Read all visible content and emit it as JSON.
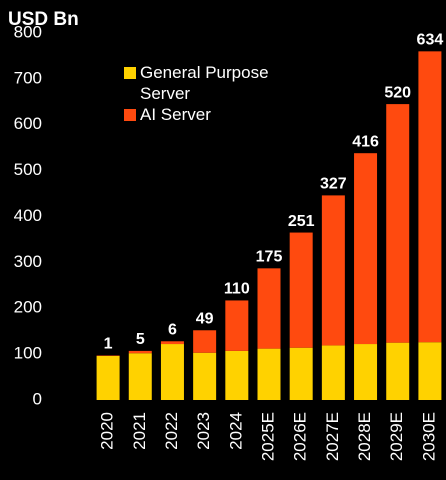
{
  "chart_data": {
    "type": "stacked_bar",
    "title": "USD Bn",
    "categories": [
      "2020",
      "2021",
      "2022",
      "2023",
      "2024",
      "2025E",
      "2026E",
      "2027E",
      "2028E",
      "2029E",
      "2030E"
    ],
    "series": [
      {
        "name": "General Purpose Server",
        "color": "#ffd200",
        "values": [
          96,
          102,
          122,
          103,
          107,
          112,
          114,
          119,
          122,
          125,
          126
        ]
      },
      {
        "name": "AI Server",
        "color": "#ff4a0f",
        "values": [
          1,
          5,
          6,
          49,
          110,
          175,
          251,
          327,
          416,
          520,
          634
        ]
      }
    ],
    "ylim": [
      0,
      800
    ],
    "yticks": [
      0,
      100,
      200,
      300,
      400,
      500,
      600,
      700,
      800
    ],
    "grid": false,
    "legend": "top-left"
  }
}
